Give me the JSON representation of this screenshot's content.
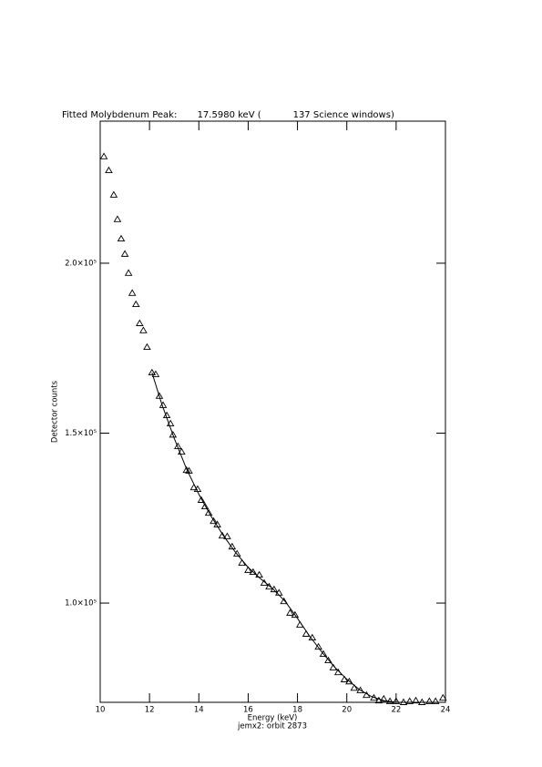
{
  "chart_data": {
    "type": "scatter",
    "title": "Fitted Molybdenum Peak:       17.5980 keV (           137 Science windows)",
    "x_label": "Energy (keV)",
    "y_label": "Detector counts",
    "footer": "jemx2: orbit 2873",
    "xlim": [
      10,
      24
    ],
    "ylim": [
      70800,
      241800
    ],
    "xticks": [
      10,
      12,
      14,
      16,
      18,
      20,
      22,
      24
    ],
    "yticks": [
      {
        "value": 100000,
        "label": "1.0×10⁵"
      },
      {
        "value": 150000,
        "label": "1.5×10⁵"
      },
      {
        "value": 200000,
        "label": "2.0×10⁵"
      }
    ],
    "series": [
      {
        "color": "#000000",
        "marker": "triangle",
        "x": [
          10.15,
          10.35,
          10.55,
          10.7,
          10.85,
          11.0,
          11.15,
          11.3,
          11.45,
          11.6,
          11.75,
          11.9,
          12.1,
          12.25,
          12.4,
          12.55,
          12.7,
          12.85,
          12.95,
          13.15,
          13.3,
          13.5,
          13.6,
          13.8,
          13.95,
          14.1,
          14.25,
          14.4,
          14.6,
          14.75,
          14.95,
          15.15,
          15.35,
          15.55,
          15.75,
          16.0,
          16.2,
          16.45,
          16.65,
          16.85,
          17.05,
          17.25,
          17.45,
          17.7,
          17.9,
          18.1,
          18.35,
          18.6,
          18.85,
          19.05,
          19.25,
          19.45,
          19.65,
          19.9,
          20.1,
          20.3,
          20.55,
          20.8,
          21.1,
          21.3,
          21.5,
          21.75,
          22.0,
          22.3,
          22.55,
          22.8,
          23.05,
          23.35,
          23.6,
          23.9
        ],
        "values": [
          231400,
          227300,
          220100,
          212900,
          207200,
          202700,
          197100,
          191200,
          187900,
          182300,
          180200,
          175300,
          167800,
          167300,
          160900,
          158200,
          155200,
          152800,
          149500,
          146100,
          144500,
          139100,
          138900,
          134000,
          133500,
          130300,
          128400,
          126500,
          124100,
          123100,
          119800,
          119600,
          116600,
          114500,
          111800,
          109700,
          109100,
          108300,
          105900,
          104800,
          104000,
          103000,
          100500,
          97100,
          96500,
          93600,
          90900,
          89800,
          87100,
          85000,
          83100,
          81000,
          79600,
          77500,
          76900,
          75000,
          74300,
          72900,
          72100,
          71300,
          71800,
          71100,
          71100,
          70800,
          71100,
          71300,
          70800,
          71100,
          71100,
          72100
        ]
      },
      {
        "color": "#000000",
        "marker": "line",
        "x": [
          12.1,
          12.5,
          13,
          13.5,
          14,
          14.5,
          15,
          15.5,
          16,
          16.5,
          17,
          17.5,
          18,
          18.5,
          19,
          19.5,
          20,
          20.5,
          21,
          21.5,
          22
        ],
        "values": [
          167800,
          158500,
          148500,
          139500,
          132000,
          125500,
          119800,
          114800,
          110500,
          107200,
          104200,
          100500,
          95500,
          90200,
          85500,
          81200,
          77600,
          74600,
          72500,
          71300,
          70800
        ]
      }
    ]
  }
}
